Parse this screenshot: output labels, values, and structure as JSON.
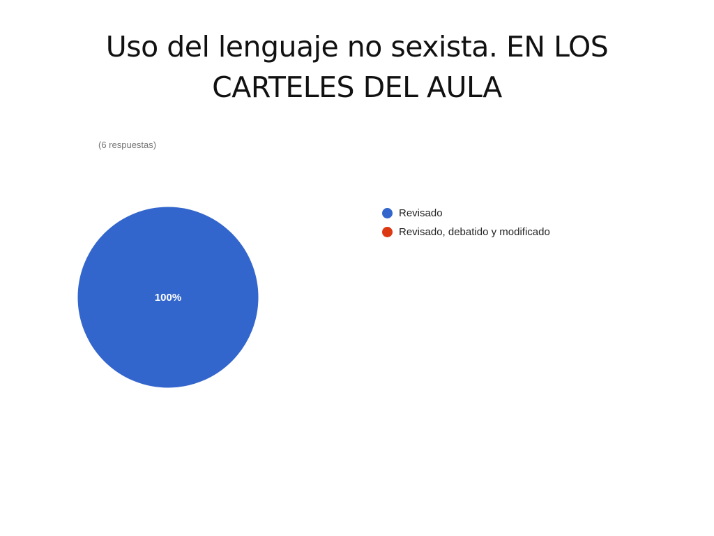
{
  "slide": {
    "title": "Uso del lenguaje no sexista. EN LOS CARTELES DEL AULA"
  },
  "chart_data": {
    "type": "pie",
    "subtitle": "(6 respuestas)",
    "categories": [
      "Revisado",
      "Revisado, debatido y modificado"
    ],
    "values": [
      100,
      0
    ],
    "data_labels": [
      "100%",
      ""
    ],
    "colors": [
      "#3366cc",
      "#dc3912"
    ],
    "legend": "right"
  }
}
